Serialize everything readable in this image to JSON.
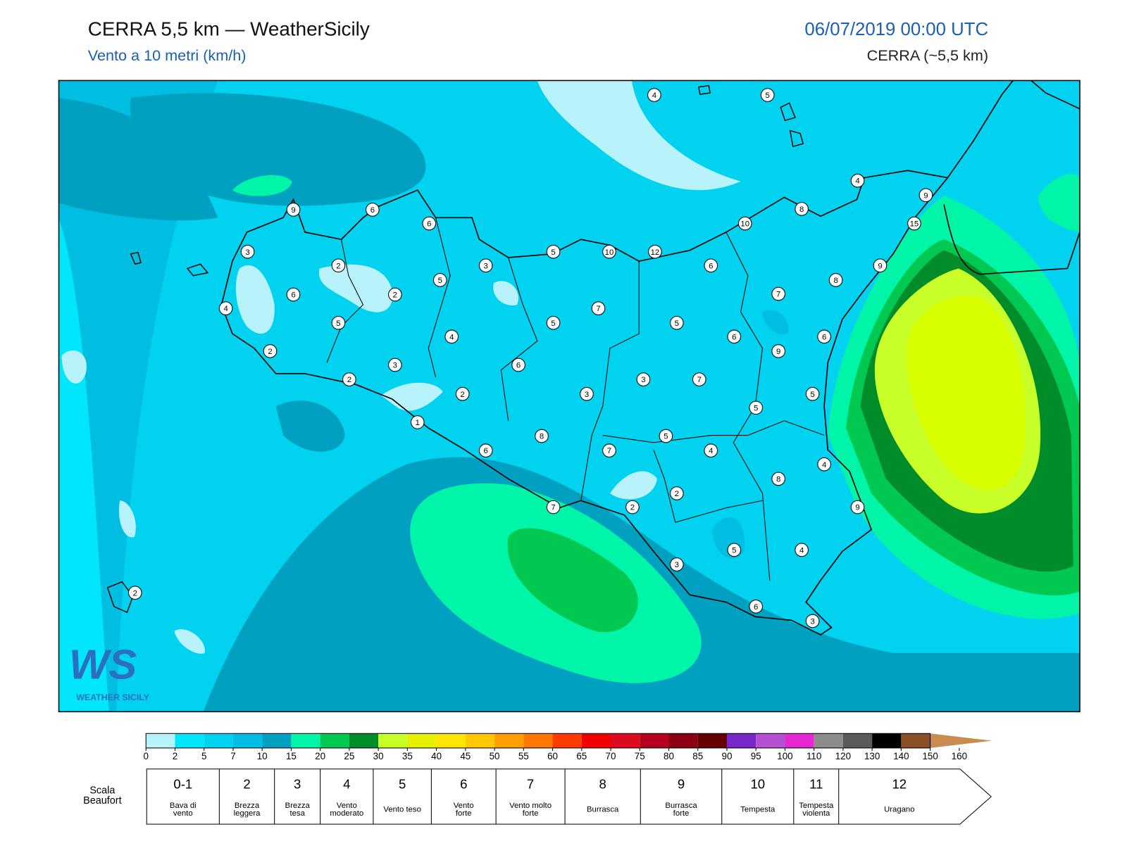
{
  "header": {
    "title": "CERRA 5,5 km — WeatherSicily",
    "subtitle": "Vento a 10 metri (km/h)",
    "datetime": "06/07/2019 00:00 UTC",
    "model": "CERRA (~5,5 km)"
  },
  "map": {
    "station_values": [
      4,
      5,
      9,
      6,
      6,
      4,
      9,
      8,
      10,
      15,
      3,
      5,
      10,
      12,
      2,
      3,
      6,
      9,
      5,
      8,
      6,
      2,
      4,
      7,
      7,
      5,
      5,
      5,
      4,
      6,
      6,
      2,
      9,
      3,
      6,
      2,
      3,
      7,
      2,
      3,
      5,
      5,
      1,
      8,
      5,
      6,
      7,
      4,
      4,
      8,
      2,
      7,
      2,
      9,
      5,
      4,
      3,
      2,
      6,
      3
    ],
    "logo": {
      "mark": "WS",
      "name": "WEATHER SICILY"
    }
  },
  "colorbar": {
    "ticks": [
      0,
      2,
      5,
      7,
      10,
      15,
      20,
      25,
      30,
      35,
      40,
      45,
      50,
      55,
      60,
      65,
      70,
      75,
      80,
      85,
      90,
      95,
      100,
      110,
      120,
      130,
      140,
      150,
      160
    ],
    "colors": [
      "#b8f2fb",
      "#00e6fa",
      "#00d2f0",
      "#00bee2",
      "#00a0c0",
      "#00f5a8",
      "#00c850",
      "#008c28",
      "#c8ff28",
      "#e6f000",
      "#ffe600",
      "#ffc800",
      "#ffa000",
      "#ff7800",
      "#ff3c00",
      "#f00000",
      "#dc0a1e",
      "#b4001e",
      "#8c0014",
      "#640000",
      "#7828c8",
      "#b450d2",
      "#e628d2",
      "#8c8c8c",
      "#5a5a5a",
      "#000000",
      "#8c5028",
      "#c88c50"
    ]
  },
  "beaufort": {
    "label": [
      "Scala",
      "Beaufort"
    ],
    "levels": [
      {
        "force": "0-1",
        "description": [
          "Bava di",
          "vento"
        ]
      },
      {
        "force": 2,
        "description": [
          "Brezza",
          "leggera"
        ]
      },
      {
        "force": 3,
        "description": [
          "Brezza",
          "tesa"
        ]
      },
      {
        "force": 4,
        "description": [
          "Vento",
          "moderato"
        ]
      },
      {
        "force": 5,
        "description": [
          "Vento teso"
        ]
      },
      {
        "force": 6,
        "description": [
          "Vento",
          "forte"
        ]
      },
      {
        "force": 7,
        "description": [
          "Vento molto",
          "forte"
        ]
      },
      {
        "force": 8,
        "description": [
          "Burrasca"
        ]
      },
      {
        "force": 9,
        "description": [
          "Burrasca",
          "forte"
        ]
      },
      {
        "force": 10,
        "description": [
          "Tempesta"
        ]
      },
      {
        "force": 11,
        "description": [
          "Tempesta",
          "violenta"
        ]
      },
      {
        "force": 12,
        "description": [
          "Uragano"
        ]
      }
    ]
  }
}
